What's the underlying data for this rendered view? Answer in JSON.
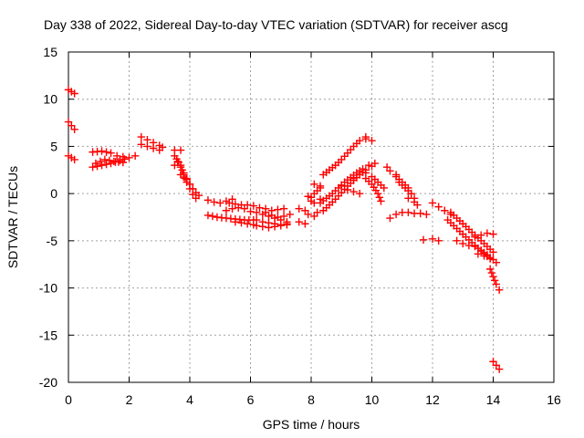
{
  "chart_data": {
    "type": "scatter",
    "title": "Day 338 of 2022, Sidereal Day-to-day VTEC variation (SDTVAR) for receiver ascg",
    "xlabel": "GPS time / hours",
    "ylabel": "SDTVAR / TECUs",
    "xlim": [
      0,
      16
    ],
    "ylim": [
      -20,
      15
    ],
    "xticks": [
      0,
      2,
      4,
      6,
      8,
      10,
      12,
      14,
      16
    ],
    "yticks": [
      15,
      10,
      5,
      0,
      -5,
      -10,
      -15,
      -20
    ],
    "grid": true,
    "marker": "+",
    "color": "#ff0000",
    "series": [
      {
        "name": "SDTVAR",
        "tracks": [
          {
            "x": [
              0.0,
              0.1,
              0.2
            ],
            "y": [
              11.0,
              10.8,
              10.6
            ]
          },
          {
            "x": [
              0.0,
              0.1,
              0.2
            ],
            "y": [
              7.6,
              7.2,
              6.8
            ]
          },
          {
            "x": [
              0.0,
              0.1,
              0.2
            ],
            "y": [
              4.0,
              3.8,
              3.6
            ]
          },
          {
            "x": [
              0.8,
              1.1,
              1.4,
              1.7,
              2.0,
              2.2
            ],
            "y": [
              2.8,
              3.0,
              3.2,
              3.5,
              3.8,
              4.0
            ]
          },
          {
            "x": [
              0.8,
              1.1,
              1.4,
              1.6,
              1.8
            ],
            "y": [
              4.4,
              4.5,
              4.3,
              4.0,
              3.9
            ]
          },
          {
            "x": [
              0.9,
              1.2,
              1.5,
              1.8
            ],
            "y": [
              3.2,
              3.6,
              3.4,
              3.3
            ]
          },
          {
            "x": [
              2.4,
              2.6,
              2.8,
              3.0,
              3.1
            ],
            "y": [
              6.0,
              5.7,
              5.4,
              5.1,
              4.9
            ]
          },
          {
            "x": [
              2.4,
              2.6,
              2.8,
              3.0
            ],
            "y": [
              5.2,
              5.0,
              4.8,
              4.6
            ]
          },
          {
            "x": [
              3.5,
              3.7,
              3.8,
              3.9,
              4.0,
              4.1,
              4.2
            ],
            "y": [
              4.0,
              3.0,
              2.0,
              1.2,
              0.5,
              -0.1,
              -0.5
            ]
          },
          {
            "x": [
              3.6,
              3.7,
              3.8,
              3.9,
              4.0,
              4.1,
              4.2,
              4.3
            ],
            "y": [
              3.4,
              2.8,
              2.2,
              1.6,
              1.0,
              0.5,
              0.1,
              -0.2
            ]
          },
          {
            "x": [
              3.7,
              3.9,
              4.0,
              4.1
            ],
            "y": [
              2.0,
              1.5,
              1.0,
              0.5
            ]
          },
          {
            "x": [
              3.5,
              3.7
            ],
            "y": [
              4.6,
              4.6
            ]
          },
          {
            "x": [
              3.5
            ],
            "y": [
              3.0
            ]
          },
          {
            "x": [
              4.6,
              4.8,
              5.0,
              5.2,
              5.4
            ],
            "y": [
              -0.7,
              -0.9,
              -1.0,
              -0.8,
              -0.6
            ]
          },
          {
            "x": [
              4.6,
              4.9,
              5.2,
              5.5,
              5.8,
              6.1
            ],
            "y": [
              -2.3,
              -2.5,
              -2.6,
              -2.7,
              -2.8,
              -2.8
            ]
          },
          {
            "x": [
              5.3,
              5.5,
              5.7,
              5.9,
              6.1
            ],
            "y": [
              -1.0,
              -1.1,
              -1.2,
              -1.2,
              -1.3
            ]
          },
          {
            "x": [
              5.5,
              5.7,
              5.9,
              6.1
            ],
            "y": [
              -3.0,
              -3.1,
              -3.2,
              -3.3
            ]
          },
          {
            "x": [
              5.2,
              5.4,
              5.6,
              5.8,
              6.0
            ],
            "y": [
              -1.8,
              -1.6,
              -1.5,
              -1.6,
              -1.9
            ]
          },
          {
            "x": [
              6.2,
              6.4,
              6.6,
              6.8,
              7.0,
              7.2
            ],
            "y": [
              -2.0,
              -2.2,
              -2.4,
              -2.6,
              -2.8,
              -3.0
            ]
          },
          {
            "x": [
              6.2,
              6.4,
              6.6,
              6.8,
              7.0,
              7.2
            ],
            "y": [
              -3.4,
              -3.5,
              -3.6,
              -3.5,
              -3.4,
              -3.3
            ]
          },
          {
            "x": [
              6.3,
              6.5,
              6.7,
              6.9,
              7.1
            ],
            "y": [
              -1.5,
              -1.6,
              -1.8,
              -1.7,
              -1.6
            ]
          },
          {
            "x": [
              6.2,
              6.4,
              6.6,
              6.8,
              7.0,
              7.2
            ],
            "y": [
              -2.8,
              -3.0,
              -3.1,
              -3.2,
              -3.3,
              -3.2
            ]
          },
          {
            "x": [
              6.5,
              6.7,
              6.9,
              7.1,
              7.3
            ],
            "y": [
              -2.0,
              -2.3,
              -2.5,
              -2.4,
              -2.2
            ]
          },
          {
            "x": [
              7.6,
              7.8
            ],
            "y": [
              -3.0,
              -3.2
            ]
          },
          {
            "x": [
              7.6,
              7.8
            ],
            "y": [
              -1.6,
              -1.8
            ]
          },
          {
            "x": [
              7.9,
              8.1,
              8.2
            ],
            "y": [
              -2.2,
              -2.4,
              -2.0
            ]
          },
          {
            "x": [
              8.0,
              8.1,
              8.3
            ],
            "y": [
              -0.8,
              -1.0,
              -0.6
            ]
          },
          {
            "x": [
              7.9,
              8.0,
              8.1,
              8.3
            ],
            "y": [
              -0.3,
              -0.4,
              0.0,
              0.6
            ]
          },
          {
            "x": [
              8.1,
              8.3
            ],
            "y": [
              1.0,
              0.8
            ]
          },
          {
            "x": [
              8.3,
              8.5,
              8.7,
              8.9,
              9.1,
              9.3,
              9.5,
              9.7,
              9.9,
              10.1
            ],
            "y": [
              -1.0,
              -0.5,
              0.0,
              0.6,
              1.2,
              1.7,
              2.2,
              2.6,
              3.0,
              3.2
            ]
          },
          {
            "x": [
              8.4,
              8.6,
              8.8,
              9.0,
              9.2,
              9.4,
              9.6,
              9.8,
              10.0
            ],
            "y": [
              -1.8,
              -1.2,
              -0.6,
              0.1,
              0.8,
              1.4,
              2.0,
              2.5,
              2.9
            ]
          },
          {
            "x": [
              8.4,
              8.6,
              8.8,
              9.0,
              9.2,
              9.4,
              9.6,
              9.8
            ],
            "y": [
              2.0,
              2.5,
              3.0,
              3.6,
              4.3,
              5.0,
              5.6,
              6.0
            ]
          },
          {
            "x": [
              9.8,
              10.0
            ],
            "y": [
              5.8,
              5.6
            ]
          },
          {
            "x": [
              9.4,
              9.6,
              9.8,
              10.0,
              10.2,
              10.3
            ],
            "y": [
              1.6,
              2.0,
              1.6,
              1.0,
              0.0,
              -0.8
            ]
          },
          {
            "x": [
              9.6,
              9.8,
              10.0,
              10.2,
              10.4
            ],
            "y": [
              2.4,
              2.2,
              1.8,
              1.2,
              0.6
            ]
          },
          {
            "x": [
              9.0,
              9.2,
              9.4,
              9.6
            ],
            "y": [
              0.8,
              0.4,
              0.2,
              0.0
            ]
          },
          {
            "x": [
              10.5,
              10.6,
              10.8
            ],
            "y": [
              2.8,
              2.4,
              2.0
            ]
          },
          {
            "x": [
              10.8,
              11.0,
              11.2,
              11.3
            ],
            "y": [
              1.8,
              1.2,
              0.6,
              0.0
            ]
          },
          {
            "x": [
              10.9,
              11.1,
              11.3,
              11.4
            ],
            "y": [
              1.2,
              0.6,
              0.0,
              -0.5
            ]
          },
          {
            "x": [
              11.2,
              11.4,
              11.5
            ],
            "y": [
              -0.5,
              -0.9,
              -1.2
            ]
          },
          {
            "x": [
              10.6,
              10.8
            ],
            "y": [
              -2.6,
              -2.2
            ]
          },
          {
            "x": [
              11.0,
              11.2,
              11.4,
              11.6,
              11.8
            ],
            "y": [
              -2.0,
              -2.0,
              -2.1,
              -2.1,
              -2.2
            ]
          },
          {
            "x": [
              11.7
            ],
            "y": [
              -4.9
            ]
          },
          {
            "x": [
              12.0,
              12.2
            ],
            "y": [
              -4.8,
              -5.0
            ]
          },
          {
            "x": [
              12.0,
              12.2,
              12.4,
              12.6
            ],
            "y": [
              -1.0,
              -1.4,
              -1.8,
              -2.2
            ]
          },
          {
            "x": [
              12.5,
              12.7,
              12.9,
              13.1,
              13.3,
              13.5,
              13.7,
              13.9,
              14.1
            ],
            "y": [
              -2.8,
              -3.4,
              -4.0,
              -4.6,
              -5.2,
              -5.8,
              -6.4,
              -6.9,
              -7.3
            ]
          },
          {
            "x": [
              12.6,
              12.8,
              13.0,
              13.2,
              13.4,
              13.6,
              13.8,
              14.0
            ],
            "y": [
              -2.0,
              -2.6,
              -3.2,
              -3.8,
              -4.4,
              -5.0,
              -5.6,
              -6.2
            ]
          },
          {
            "x": [
              12.8,
              13.0,
              13.2,
              13.4
            ],
            "y": [
              -5.0,
              -5.3,
              -5.5,
              -5.6
            ]
          },
          {
            "x": [
              13.6,
              13.8,
              13.9,
              14.0
            ],
            "y": [
              -6.0,
              -6.5,
              -6.8,
              -7.0
            ]
          },
          {
            "x": [
              13.4,
              13.6,
              13.8,
              14.0
            ],
            "y": [
              -4.6,
              -4.4,
              -4.2,
              -4.3
            ]
          },
          {
            "x": [
              13.5,
              13.7
            ],
            "y": [
              -6.4,
              -6.6
            ]
          },
          {
            "x": [
              13.9,
              14.0,
              14.1,
              14.2
            ],
            "y": [
              -8.0,
              -8.8,
              -9.6,
              -10.2
            ]
          },
          {
            "x": [
              14.0,
              14.1,
              14.2
            ],
            "y": [
              -17.8,
              -18.2,
              -18.6
            ]
          }
        ]
      }
    ]
  }
}
